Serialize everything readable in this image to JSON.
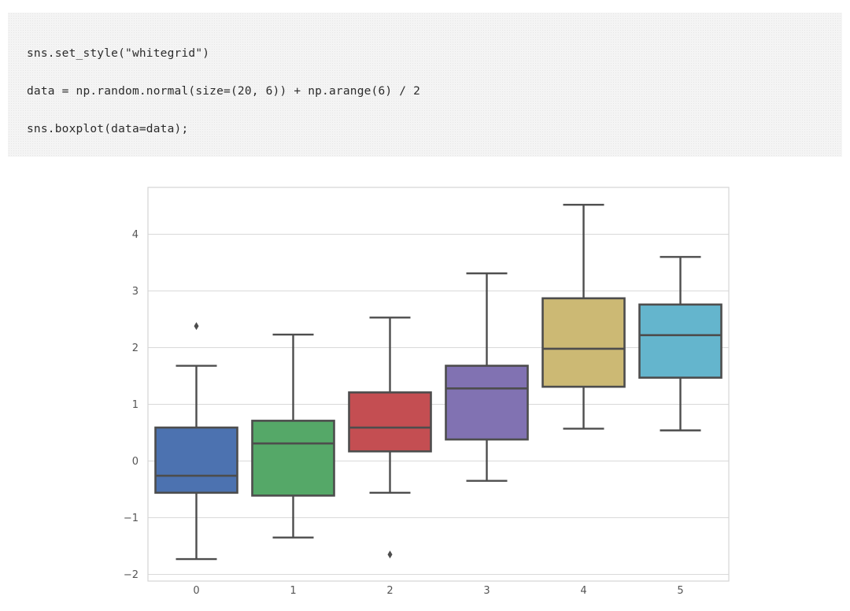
{
  "code": {
    "lines": [
      "sns.set_style(\"whitegrid\")",
      "data = np.random.normal(size=(20, 6)) + np.arange(6) / 2",
      "sns.boxplot(data=data);"
    ]
  },
  "chart_data": {
    "type": "boxplot",
    "title": "",
    "xlabel": "",
    "ylabel": "",
    "ylim": [
      -2.1,
      4.8
    ],
    "grid": true,
    "legend": "none",
    "categories": [
      "0",
      "1",
      "2",
      "3",
      "4",
      "5"
    ],
    "yticks": [
      -2,
      -1,
      0,
      1,
      2,
      3,
      4
    ],
    "ytick_labels": [
      "−2",
      "−1",
      "0",
      "1",
      "2",
      "3",
      "4"
    ],
    "boxes": [
      {
        "label": "0",
        "whisker_low": -1.73,
        "q1": -0.56,
        "median": -0.26,
        "q3": 0.59,
        "whisker_high": 1.68,
        "outliers": [
          2.38
        ],
        "color": "#4c72b0"
      },
      {
        "label": "1",
        "whisker_low": -1.35,
        "q1": -0.61,
        "median": 0.31,
        "q3": 0.71,
        "whisker_high": 2.23,
        "outliers": [],
        "color": "#55a868"
      },
      {
        "label": "2",
        "whisker_low": -0.56,
        "q1": 0.17,
        "median": 0.59,
        "q3": 1.21,
        "whisker_high": 2.53,
        "outliers": [
          -1.65
        ],
        "color": "#c44e52"
      },
      {
        "label": "3",
        "whisker_low": -0.35,
        "q1": 0.38,
        "median": 1.28,
        "q3": 1.68,
        "whisker_high": 3.31,
        "outliers": [],
        "color": "#8172b2"
      },
      {
        "label": "4",
        "whisker_low": 0.57,
        "q1": 1.31,
        "median": 1.98,
        "q3": 2.87,
        "whisker_high": 4.52,
        "outliers": [],
        "color": "#ccb974"
      },
      {
        "label": "5",
        "whisker_low": 0.54,
        "q1": 1.47,
        "median": 2.22,
        "q3": 2.76,
        "whisker_high": 3.6,
        "outliers": [],
        "color": "#64b5cd"
      }
    ]
  }
}
